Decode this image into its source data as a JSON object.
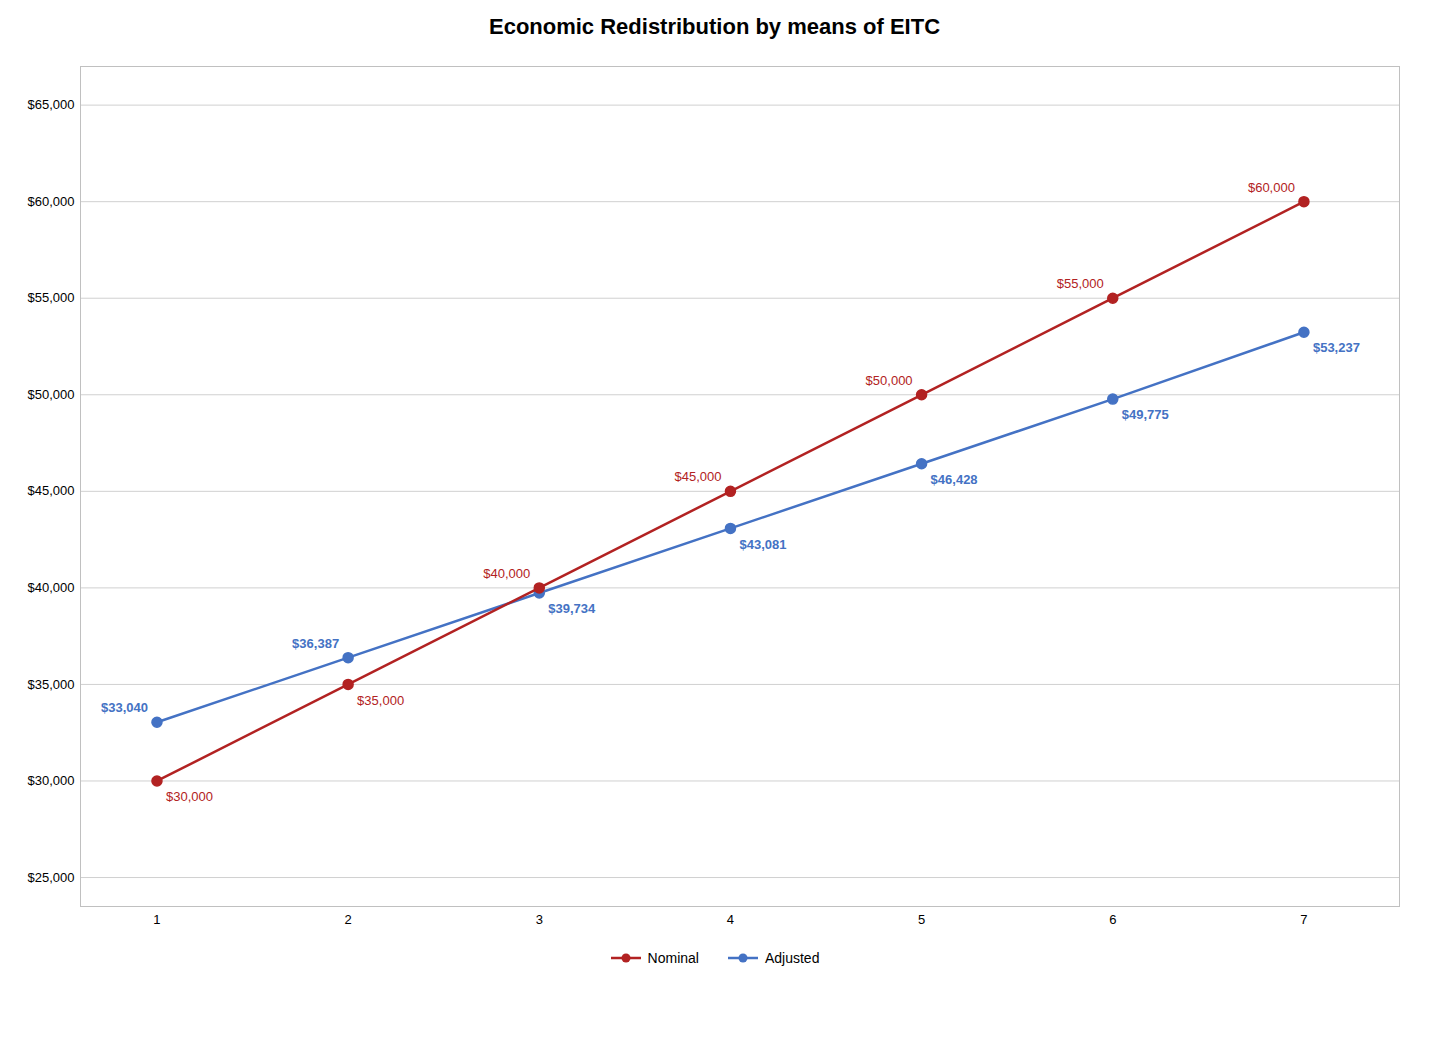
{
  "chart_data": {
    "type": "line",
    "title": "Economic Redistribution by means of EITC",
    "x": [
      1,
      2,
      3,
      4,
      5,
      6,
      7
    ],
    "series": [
      {
        "name": "Nominal",
        "color": "#b22222",
        "values": [
          30000,
          35000,
          40000,
          45000,
          50000,
          55000,
          60000
        ],
        "value_labels": [
          "$30,000",
          "$35,000",
          "$40,000",
          "$45,000",
          "$50,000",
          "$55,000",
          "$60,000"
        ]
      },
      {
        "name": "Adjusted",
        "color": "#4472c4",
        "values": [
          33040,
          36387,
          39734,
          43081,
          46428,
          49775,
          53237
        ],
        "value_labels": [
          "$33,040",
          "$36,387",
          "$39,734",
          "$43,081",
          "$46,428",
          "$49,775",
          "$53,237"
        ]
      }
    ],
    "xlim": [
      0.6,
      7.5
    ],
    "xticks": [
      1,
      2,
      3,
      4,
      5,
      6,
      7
    ],
    "ylim": [
      23500,
      67000
    ],
    "yticks": [
      {
        "value": 25000,
        "label": "$25,000"
      },
      {
        "value": 30000,
        "label": "$30,000"
      },
      {
        "value": 35000,
        "label": "$35,000"
      },
      {
        "value": 40000,
        "label": "$40,000"
      },
      {
        "value": 45000,
        "label": "$45,000"
      },
      {
        "value": 50000,
        "label": "$50,000"
      },
      {
        "value": 55000,
        "label": "$55,000"
      },
      {
        "value": 60000,
        "label": "$60,000"
      },
      {
        "value": 65000,
        "label": "$65,000"
      }
    ],
    "grid": true,
    "marker": "circle",
    "data_labels": true
  }
}
